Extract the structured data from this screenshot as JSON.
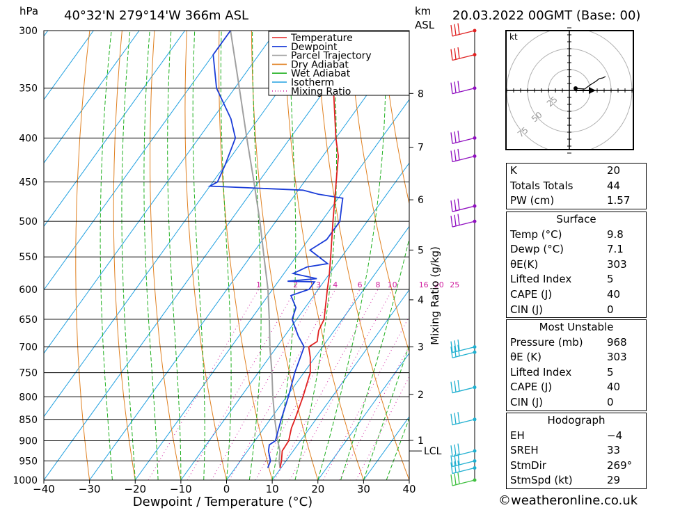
{
  "header": {
    "units_pressure": "hPa",
    "location": "40°32'N  279°14'W  366m  ASL",
    "units_height_km": "km",
    "units_height_asl": "ASL",
    "datetime": "20.03.2022  00GMT  (Base: 00)"
  },
  "colors": {
    "temperature": "#e02020",
    "dewpoint": "#1a3cd8",
    "parcel": "#a0a0a0",
    "dry_adiabat": "#e08020",
    "wet_adiabat": "#20b020",
    "isotherm": "#20a0e0",
    "mixing_ratio": "#d020a0"
  },
  "chart_data": {
    "type": "skew-t",
    "title": "40°32'N  279°14'W  366m  ASL",
    "xlabel": "Dewpoint / Temperature (°C)",
    "ylabel": "hPa",
    "secondary_ylabel": "Mixing Ratio (g/kg)",
    "xlim": [
      -40,
      40
    ],
    "ylim": [
      1000,
      300
    ],
    "x_ticks": [
      "−40",
      "−30",
      "−20",
      "−10",
      "0",
      "10",
      "20",
      "30",
      "40"
    ],
    "pressure_levels": [
      300,
      350,
      400,
      450,
      500,
      550,
      600,
      650,
      700,
      750,
      800,
      850,
      900,
      950,
      1000
    ],
    "km_ticks": [
      {
        "km": "1",
        "p": 899
      },
      {
        "km": "2",
        "p": 795
      },
      {
        "km": "3",
        "p": 700
      },
      {
        "km": "4",
        "p": 617
      },
      {
        "km": "5",
        "p": 540
      },
      {
        "km": "6",
        "p": 472
      },
      {
        "km": "7",
        "p": 410
      },
      {
        "km": "8",
        "p": 355
      }
    ],
    "lcl": {
      "label": "LCL",
      "p": 925
    },
    "mixing_ratio_labels": [
      "1",
      "2",
      "3",
      "4",
      "6",
      "8",
      "10",
      "16",
      "20",
      "25"
    ],
    "legend": [
      "Temperature",
      "Dewpoint",
      "Parcel Trajectory",
      "Dry Adiabat",
      "Wet Adiabat",
      "Isotherm",
      "Mixing Ratio"
    ],
    "legend_position": "top-right",
    "series": [
      {
        "name": "Temperature",
        "points": [
          [
            968,
            9.8
          ],
          [
            950,
            9.0
          ],
          [
            925,
            7.6
          ],
          [
            900,
            7.4
          ],
          [
            870,
            6.0
          ],
          [
            850,
            5.4
          ],
          [
            800,
            3.6
          ],
          [
            750,
            1.4
          ],
          [
            720,
            -1.0
          ],
          [
            700,
            -3.0
          ],
          [
            690,
            -2.0
          ],
          [
            670,
            -3.4
          ],
          [
            650,
            -4.0
          ],
          [
            600,
            -8.0
          ],
          [
            580,
            -9.6
          ],
          [
            550,
            -12.4
          ],
          [
            500,
            -17.5
          ],
          [
            450,
            -23.0
          ],
          [
            420,
            -26.6
          ],
          [
            400,
            -30.0
          ],
          [
            350,
            -38.4
          ],
          [
            320,
            -44.0
          ],
          [
            300,
            -48.0
          ]
        ]
      },
      {
        "name": "Dewpoint",
        "points": [
          [
            968,
            7.1
          ],
          [
            950,
            6.6
          ],
          [
            925,
            4.6
          ],
          [
            910,
            3.8
          ],
          [
            900,
            4.5
          ],
          [
            850,
            2.4
          ],
          [
            800,
            0.4
          ],
          [
            750,
            -2.0
          ],
          [
            700,
            -4.0
          ],
          [
            680,
            -7.0
          ],
          [
            650,
            -11.0
          ],
          [
            630,
            -12.0
          ],
          [
            610,
            -15.0
          ],
          [
            600,
            -12.0
          ],
          [
            588,
            -12.0
          ],
          [
            587,
            -18.0
          ],
          [
            583,
            -12.0
          ],
          [
            575,
            -18.0
          ],
          [
            565,
            -16.0
          ],
          [
            560,
            -12.0
          ],
          [
            540,
            -18.0
          ],
          [
            525,
            -16.0
          ],
          [
            500,
            -16.0
          ],
          [
            480,
            -18.0
          ],
          [
            470,
            -19.0
          ],
          [
            465,
            -25.0
          ],
          [
            460,
            -29.0
          ],
          [
            455,
            -50.0
          ],
          [
            450,
            -49.0
          ],
          [
            430,
            -50.0
          ],
          [
            400,
            -52.0
          ],
          [
            380,
            -56.0
          ],
          [
            350,
            -64.0
          ],
          [
            320,
            -70.0
          ],
          [
            300,
            -70.0
          ]
        ]
      },
      {
        "name": "Parcel Trajectory",
        "points": [
          [
            968,
            9.8
          ],
          [
            950,
            8.5
          ],
          [
            925,
            7.1
          ],
          [
            900,
            5.0
          ],
          [
            850,
            1.0
          ],
          [
            800,
            -3.0
          ],
          [
            750,
            -7.0
          ],
          [
            700,
            -11.5
          ],
          [
            650,
            -16.0
          ],
          [
            600,
            -21.0
          ],
          [
            550,
            -27.0
          ],
          [
            500,
            -33.5
          ],
          [
            450,
            -41.0
          ],
          [
            400,
            -49.5
          ],
          [
            350,
            -59.0
          ],
          [
            300,
            -70.0
          ]
        ]
      }
    ]
  },
  "wind_barbs_levels": [
    300,
    320,
    350,
    400,
    420,
    480,
    500,
    700,
    710,
    780,
    850,
    925,
    950,
    968,
    1000
  ],
  "hodograph": {
    "unit_label": "kt",
    "ring_labels": [
      "25",
      "50",
      "75"
    ]
  },
  "tables": {
    "indices": [
      {
        "label": "K",
        "value": "20"
      },
      {
        "label": "Totals Totals",
        "value": "44"
      },
      {
        "label": "PW (cm)",
        "value": "1.57"
      }
    ],
    "surface": {
      "title": "Surface",
      "rows": [
        {
          "label": "Temp (°C)",
          "value": "9.8"
        },
        {
          "label": "Dewp (°C)",
          "value": "7.1"
        },
        {
          "label": "θE(K)",
          "value": "303"
        },
        {
          "label": "Lifted Index",
          "value": "5"
        },
        {
          "label": "CAPE (J)",
          "value": "40"
        },
        {
          "label": "CIN (J)",
          "value": "0"
        }
      ]
    },
    "most_unstable": {
      "title": "Most Unstable",
      "rows": [
        {
          "label": "Pressure (mb)",
          "value": "968"
        },
        {
          "label": "θE (K)",
          "value": "303"
        },
        {
          "label": "Lifted Index",
          "value": "5"
        },
        {
          "label": "CAPE (J)",
          "value": "40"
        },
        {
          "label": "CIN (J)",
          "value": "0"
        }
      ]
    },
    "hodograph": {
      "title": "Hodograph",
      "rows": [
        {
          "label": "EH",
          "value": "−4"
        },
        {
          "label": "SREH",
          "value": "33"
        },
        {
          "label": "StmDir",
          "value": "269°"
        },
        {
          "label": "StmSpd (kt)",
          "value": "29"
        }
      ]
    }
  },
  "footer": {
    "copyright": "©weatheronline.co.uk"
  }
}
